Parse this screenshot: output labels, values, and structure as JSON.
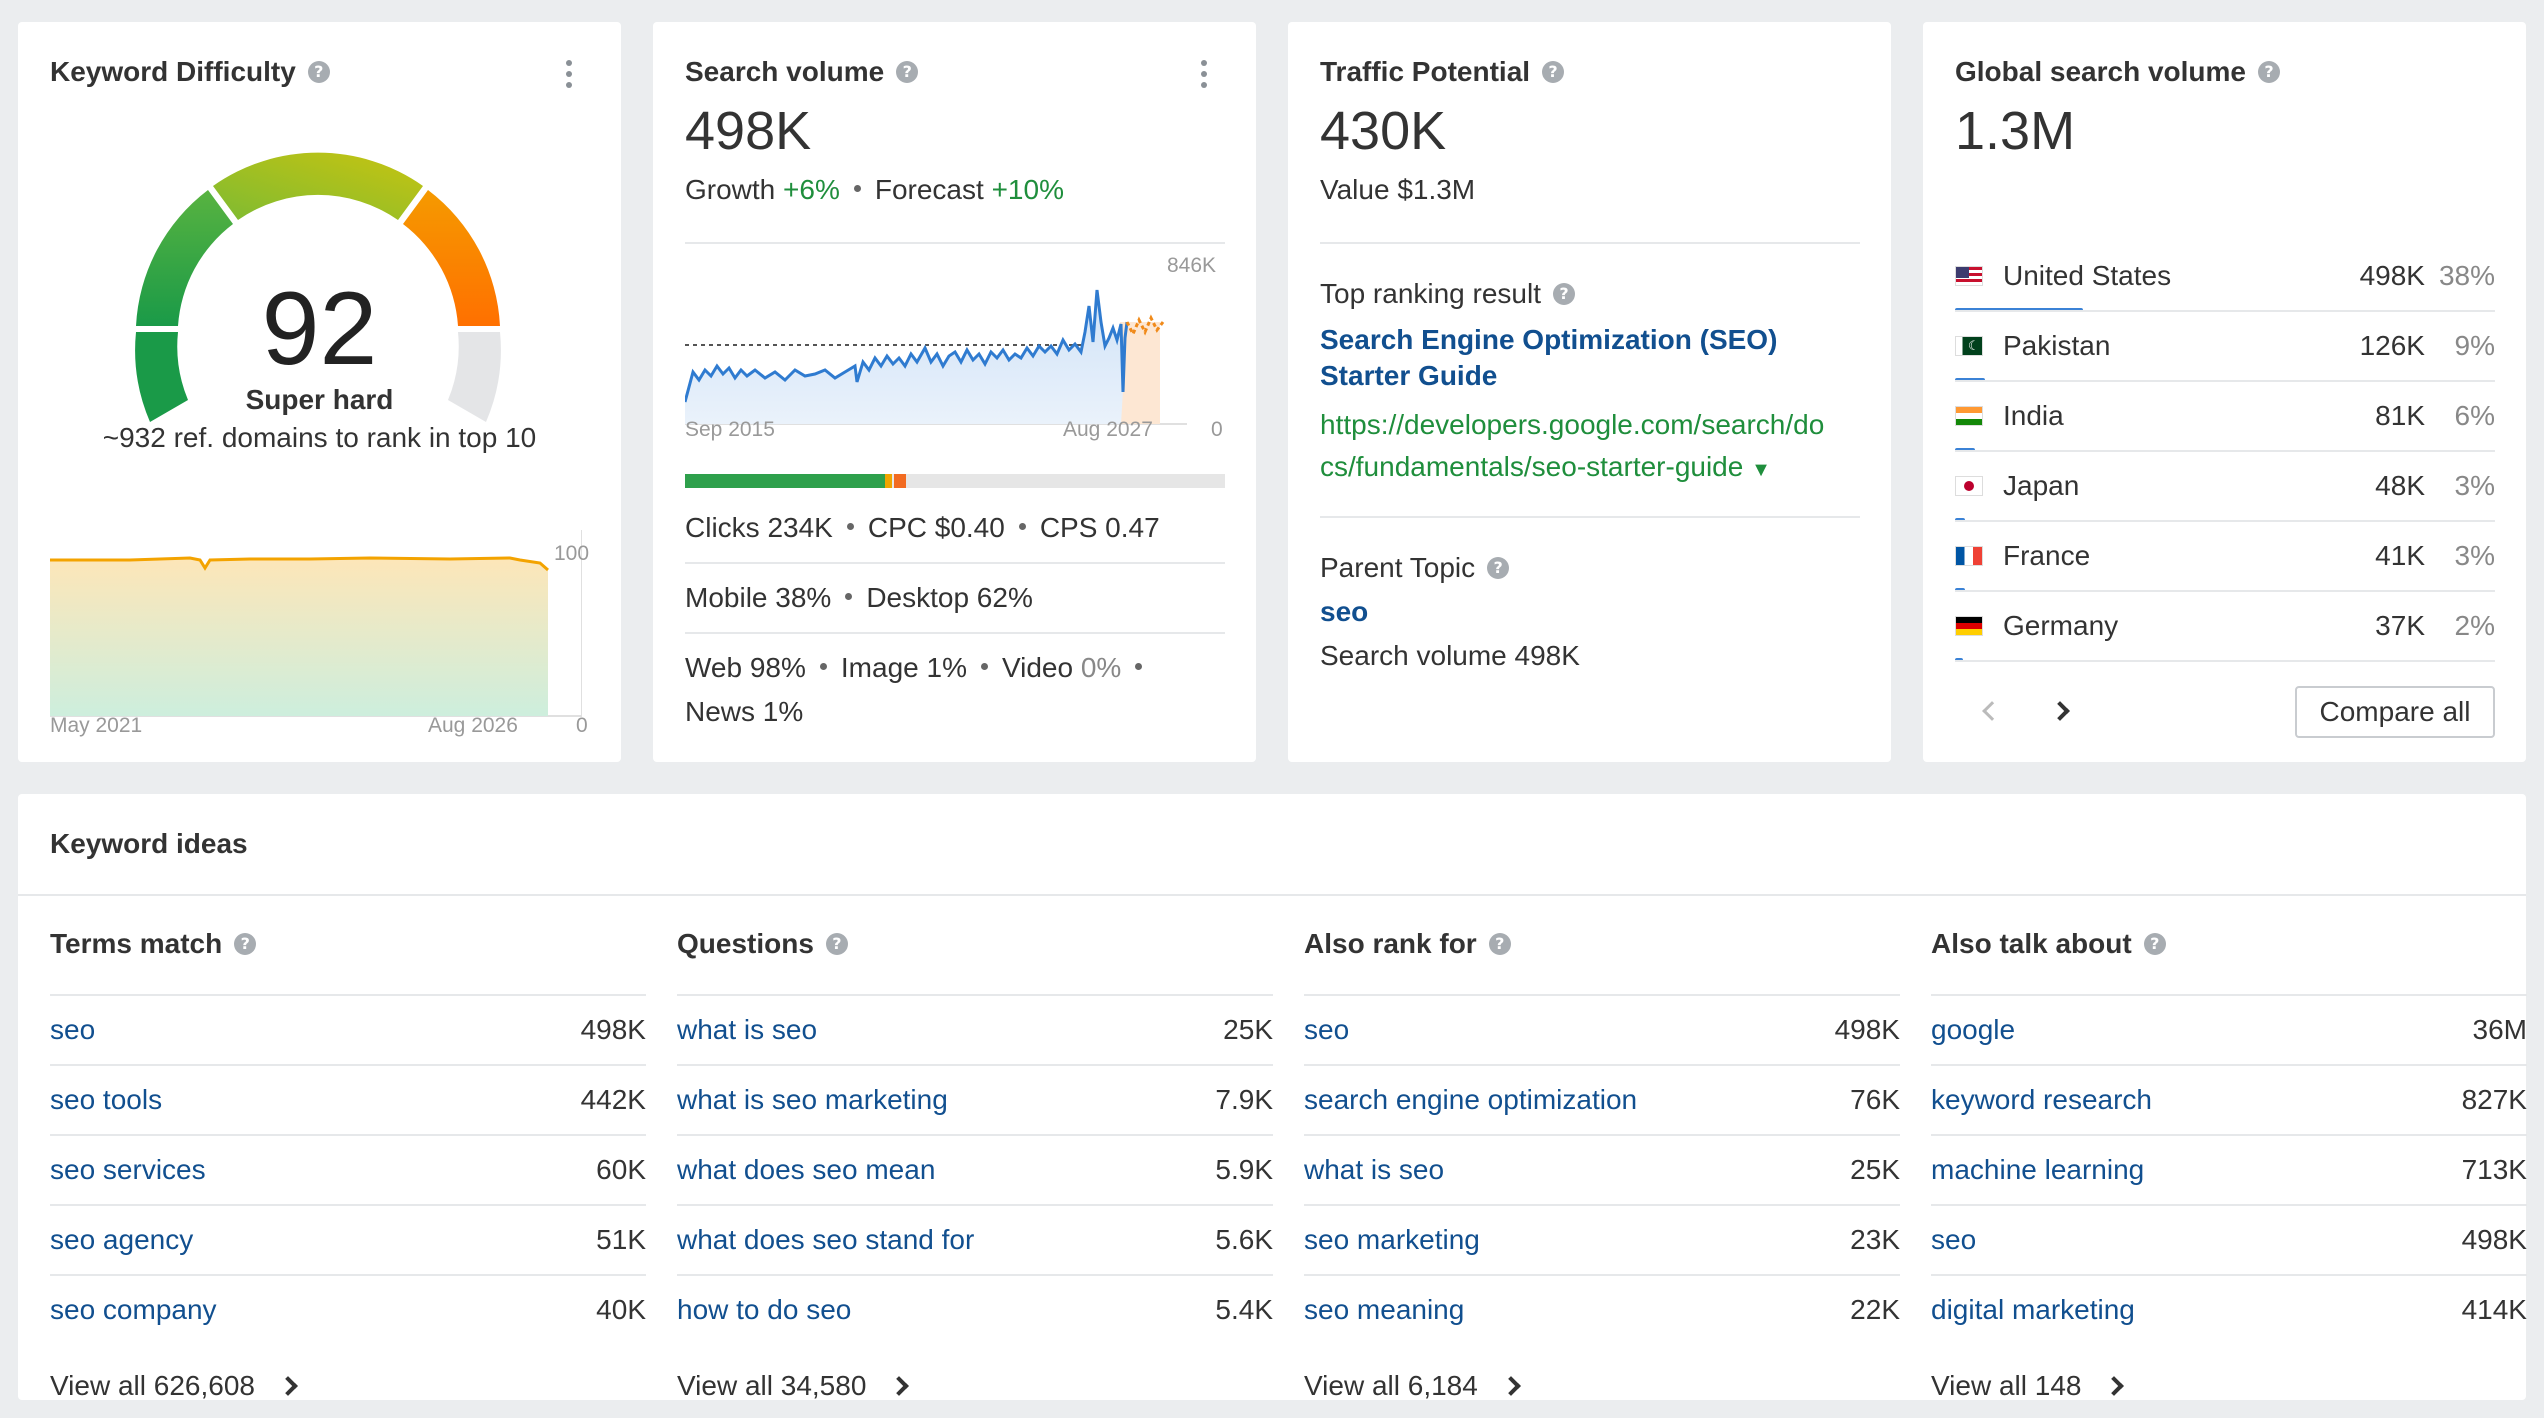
{
  "kd": {
    "title": "Keyword Difficulty",
    "score": "92",
    "label": "Super hard",
    "subtitle": "~932 ref. domains to rank in top 10",
    "chart": {
      "ymax": "100",
      "ymin": "0",
      "x_start": "May 2021",
      "x_end": "Aug 2026"
    }
  },
  "sv": {
    "title": "Search volume",
    "value": "498K",
    "growth_label": "Growth",
    "growth_value": "+6%",
    "forecast_label": "Forecast",
    "forecast_value": "+10%",
    "chart": {
      "ymax": "846K",
      "ymin": "0",
      "x_start": "Sep 2015",
      "x_end": "Aug 2027"
    },
    "clicks": "Clicks 234K",
    "cpc": "CPC $0.40",
    "cps": "CPS 0.47",
    "mobile": "Mobile 38%",
    "desktop": "Desktop 62%",
    "web": "Web 98%",
    "image": "Image 1%",
    "video_label": "Video",
    "video_value": "0%",
    "news": "News 1%"
  },
  "tp": {
    "title": "Traffic Potential",
    "value": "430K",
    "value_usd": "Value $1.3M",
    "top_result_label": "Top ranking result",
    "top_result_title_1": "Search Engine Optimization (SEO)",
    "top_result_title_2": "Starter Guide",
    "url_1": "https://developers.google.com/search/do",
    "url_2": "cs/fundamentals/seo-starter-guide",
    "parent_topic_label": "Parent Topic",
    "parent_topic": "seo",
    "parent_volume": "Search volume 498K"
  },
  "gsv": {
    "title": "Global search volume",
    "value": "1.3M",
    "countries": [
      {
        "name": "United States",
        "volume": "498K",
        "share": "38%",
        "pct": 38
      },
      {
        "name": "Pakistan",
        "volume": "126K",
        "share": "9%",
        "pct": 9
      },
      {
        "name": "India",
        "volume": "81K",
        "share": "6%",
        "pct": 6
      },
      {
        "name": "Japan",
        "volume": "48K",
        "share": "3%",
        "pct": 3
      },
      {
        "name": "France",
        "volume": "41K",
        "share": "3%",
        "pct": 3
      },
      {
        "name": "Germany",
        "volume": "37K",
        "share": "2%",
        "pct": 2
      }
    ],
    "compare_label": "Compare all"
  },
  "ki": {
    "title": "Keyword ideas",
    "columns": [
      {
        "title": "Terms match",
        "rows": [
          [
            "seo",
            "498K"
          ],
          [
            "seo tools",
            "442K"
          ],
          [
            "seo services",
            "60K"
          ],
          [
            "seo agency",
            "51K"
          ],
          [
            "seo company",
            "40K"
          ]
        ],
        "view_all": "View all 626,608"
      },
      {
        "title": "Questions",
        "rows": [
          [
            "what is seo",
            "25K"
          ],
          [
            "what is seo marketing",
            "7.9K"
          ],
          [
            "what does seo mean",
            "5.9K"
          ],
          [
            "what does seo stand for",
            "5.6K"
          ],
          [
            "how to do seo",
            "5.4K"
          ]
        ],
        "view_all": "View all 34,580"
      },
      {
        "title": "Also rank for",
        "rows": [
          [
            "seo",
            "498K"
          ],
          [
            "search engine optimization",
            "76K"
          ],
          [
            "what is seo",
            "25K"
          ],
          [
            "seo marketing",
            "23K"
          ],
          [
            "seo meaning",
            "22K"
          ]
        ],
        "view_all": "View all 6,184"
      },
      {
        "title": "Also talk about",
        "rows": [
          [
            "google",
            "36M"
          ],
          [
            "keyword research",
            "827K"
          ],
          [
            "machine learning",
            "713K"
          ],
          [
            "seo",
            "498K"
          ],
          [
            "digital marketing",
            "414K"
          ]
        ],
        "view_all": "View all 148"
      }
    ]
  }
}
